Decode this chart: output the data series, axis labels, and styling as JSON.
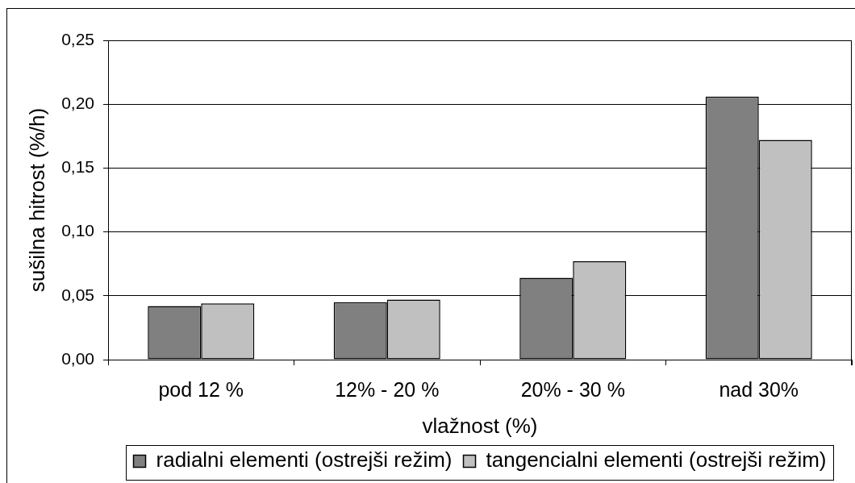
{
  "chart_data": {
    "type": "bar",
    "xlabel": "vlažnost (%)",
    "ylabel": "sušilna hitrost (%/h)",
    "categories": [
      "pod 12 %",
      "12% - 20 %",
      "20% - 30 %",
      "nad 30%"
    ],
    "series": [
      {
        "name": "radialni elementi (ostrejši režim)",
        "color": "#808080",
        "values": [
          0.042,
          0.045,
          0.064,
          0.206
        ]
      },
      {
        "name": "tangencialni elementi (ostrejši režim)",
        "color": "#c0c0c0",
        "values": [
          0.044,
          0.047,
          0.077,
          0.172
        ]
      }
    ],
    "ylim": [
      0,
      0.25
    ],
    "yticks": [
      {
        "value": 0,
        "label": "0,00"
      },
      {
        "value": 0.05,
        "label": "0,05"
      },
      {
        "value": 0.1,
        "label": "0,10"
      },
      {
        "value": 0.15,
        "label": "0,15"
      },
      {
        "value": 0.2,
        "label": "0,20"
      },
      {
        "value": 0.25,
        "label": "0,25"
      }
    ],
    "grid": "y",
    "legend": "bottom"
  }
}
